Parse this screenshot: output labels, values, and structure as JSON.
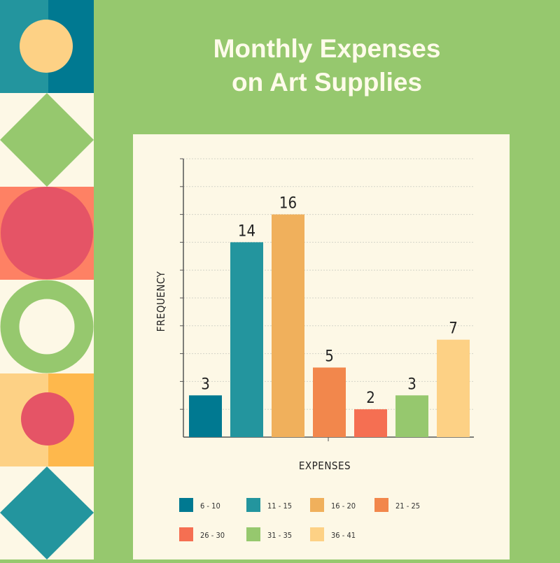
{
  "title_lines": [
    "Monthly Expenses",
    "on Art Supplies"
  ],
  "colors": {
    "background": "#96c86e",
    "panel": "#fdf8e6",
    "title": "#fffbea",
    "axis": "#555555",
    "grid": "#d4d4c8"
  },
  "chart_data": {
    "type": "bar",
    "title": "Monthly Expenses on Art Supplies",
    "xlabel": "EXPENSES",
    "ylabel": "FREQUENCY",
    "categories": [
      "6 - 10",
      "11 - 15",
      "16 - 20",
      "21 - 25",
      "26 - 30",
      "31 - 35",
      "36 - 41"
    ],
    "values": [
      3,
      14,
      16,
      5,
      2,
      3,
      7
    ],
    "colors": [
      "#007991",
      "#23959e",
      "#f0b05c",
      "#f2874c",
      "#f56f52",
      "#96c86e",
      "#fdd185"
    ],
    "ylim": [
      0,
      20
    ],
    "grid": true,
    "legend_position": "bottom"
  }
}
